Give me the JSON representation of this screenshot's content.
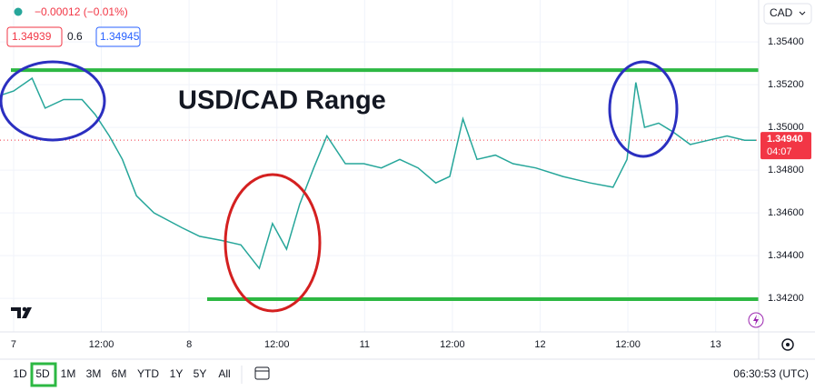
{
  "chart_data": {
    "type": "line",
    "title": "USD/CAD Range",
    "header": {
      "change": "−0.00012 (−0.01%)",
      "bid": "1.34939",
      "spread": "0.6",
      "ask": "1.34945",
      "currency": "CAD"
    },
    "x": [
      -0.15,
      0,
      0.21,
      0.36,
      0.57,
      0.78,
      0.93,
      1.09,
      1.24,
      1.4,
      1.6,
      1.92,
      2.12,
      2.38,
      2.59,
      2.8,
      2.95,
      3.11,
      3.26,
      3.42,
      3.57,
      3.78,
      3.99,
      4.19,
      4.4,
      4.61,
      4.81,
      4.97,
      5.12,
      5.28,
      5.49,
      5.69,
      5.95,
      6.26,
      6.57,
      6.83,
      6.99,
      7.09,
      7.19,
      7.35,
      7.51,
      7.71,
      7.92,
      8.13,
      8.33,
      8.46
    ],
    "series": [
      {
        "name": "USD/CAD",
        "color": "#26a69a",
        "values": [
          1.3515,
          1.3517,
          1.3523,
          1.3509,
          1.3513,
          1.3513,
          1.3506,
          1.3496,
          1.3485,
          1.3468,
          1.346,
          1.3453,
          1.3449,
          1.3447,
          1.3445,
          1.3434,
          1.3455,
          1.3443,
          1.3464,
          1.3481,
          1.3496,
          1.3483,
          1.3483,
          1.3481,
          1.3485,
          1.3481,
          1.3474,
          1.3477,
          1.3504,
          1.3485,
          1.3487,
          1.3483,
          1.3481,
          1.3477,
          1.3474,
          1.3472,
          1.3485,
          1.3521,
          1.35,
          1.3502,
          1.3498,
          1.3492,
          1.3494,
          1.3496,
          1.3494,
          1.3494
        ]
      }
    ],
    "xlim": [
      -0.155,
      8.49
    ],
    "xticks": [
      {
        "value": 0,
        "label": "7"
      },
      {
        "value": 1,
        "label": "12:00"
      },
      {
        "value": 2,
        "label": "8"
      },
      {
        "value": 3,
        "label": "12:00"
      },
      {
        "value": 4,
        "label": "11"
      },
      {
        "value": 5,
        "label": "12:00"
      },
      {
        "value": 6,
        "label": "12"
      },
      {
        "value": 7,
        "label": "12:00"
      },
      {
        "value": 8,
        "label": "13"
      }
    ],
    "ylim": [
      1.34043,
      1.35596
    ],
    "yticks": [
      {
        "value": 1.342,
        "label": "1.34200"
      },
      {
        "value": 1.344,
        "label": "1.34400"
      },
      {
        "value": 1.346,
        "label": "1.34600"
      },
      {
        "value": 1.348,
        "label": "1.34800"
      },
      {
        "value": 1.35,
        "label": "1.35000"
      },
      {
        "value": 1.352,
        "label": "1.35200"
      },
      {
        "value": 1.354,
        "label": "1.35400"
      }
    ],
    "grid": true,
    "range_lines": [
      1.35268,
      1.34196
    ],
    "range_color": "#2db843",
    "last_price": {
      "value": 1.3494,
      "label": "1.34940"
    },
    "countdown": "04:07",
    "toolbar": {
      "ranges": [
        "1D",
        "5D",
        "1M",
        "3M",
        "6M",
        "YTD",
        "1Y",
        "5Y",
        "All"
      ],
      "time": "06:30:53 (UTC)"
    }
  }
}
